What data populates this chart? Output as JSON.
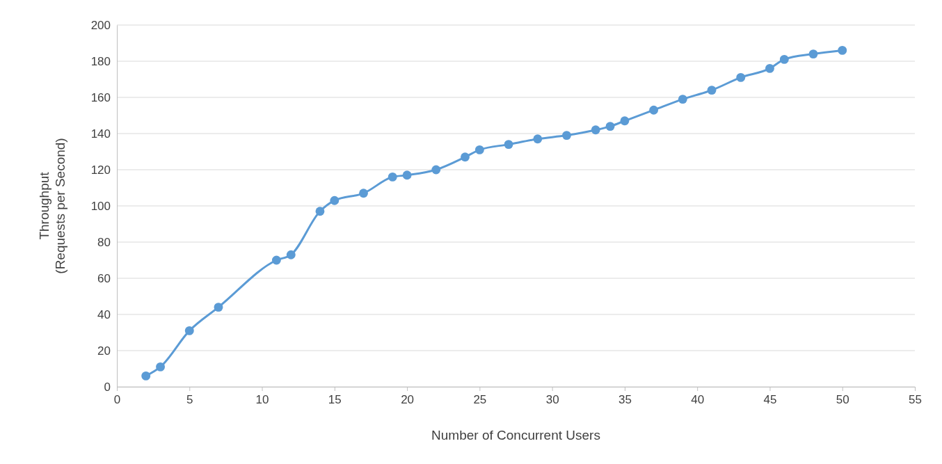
{
  "chart_data": {
    "type": "line",
    "xlabel": "Number of Concurrent Users",
    "ylabel": "Throughput\n(Requests per Second)",
    "x": [
      2,
      3,
      5,
      7,
      11,
      12,
      14,
      15,
      17,
      19,
      20,
      22,
      24,
      25,
      27,
      29,
      31,
      33,
      34,
      35,
      37,
      39,
      41,
      43,
      45,
      46,
      48,
      50
    ],
    "series": [
      {
        "color": "#5b9bd5",
        "values": [
          6,
          11,
          31,
          44,
          70,
          73,
          97,
          103,
          107,
          116,
          117,
          120,
          127,
          131,
          134,
          137,
          139,
          142,
          144,
          147,
          153,
          159,
          164,
          171,
          176,
          181,
          184,
          186
        ]
      }
    ],
    "xlim": [
      0,
      55
    ],
    "xticks": [
      0,
      5,
      10,
      15,
      20,
      25,
      30,
      35,
      40,
      45,
      50,
      55
    ],
    "ylim": [
      0,
      200
    ],
    "yticks": [
      0,
      20,
      40,
      60,
      80,
      100,
      120,
      140,
      160,
      180,
      200
    ],
    "grid": "y",
    "marker": "circle",
    "line_style": "solid"
  }
}
